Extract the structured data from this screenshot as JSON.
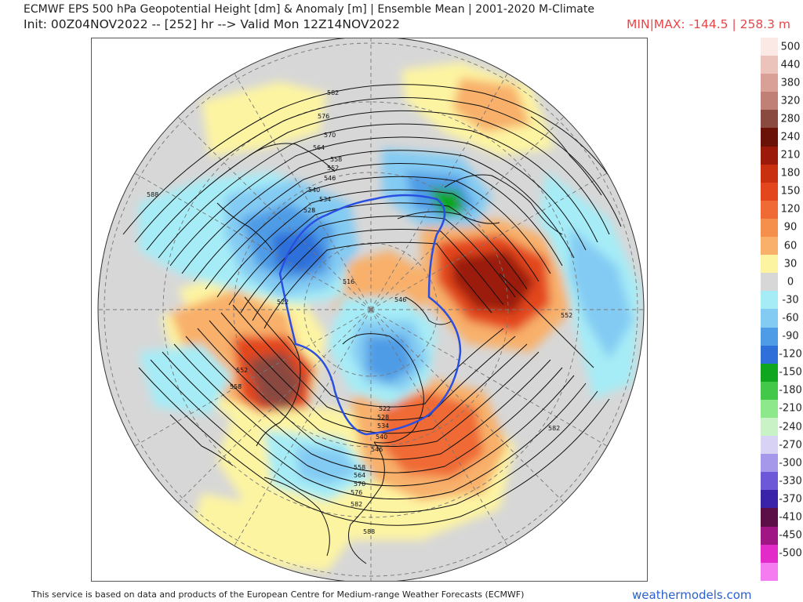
{
  "header": {
    "title": "ECMWF EPS 500 hPa Geopotential Height [dm] & Anomaly [m] | Ensemble Mean | 2001-2020 M-Climate",
    "init_line": "Init: 00Z04NOV2022 -- [252] hr --> Valid Mon 12Z14NOV2022",
    "minmax": "MIN|MAX: -144.5 | 258.3 m"
  },
  "colorbar": {
    "items": [
      {
        "label": "500",
        "color": "#fbe9e6"
      },
      {
        "label": "440",
        "color": "#ecc3bb"
      },
      {
        "label": "380",
        "color": "#d9a097"
      },
      {
        "label": "320",
        "color": "#c08075"
      },
      {
        "label": "280",
        "color": "#8a4a40"
      },
      {
        "label": "240",
        "color": "#6b1208"
      },
      {
        "label": "210",
        "color": "#9b1a0a"
      },
      {
        "label": "180",
        "color": "#c8300f"
      },
      {
        "label": "150",
        "color": "#e3461d"
      },
      {
        "label": "120",
        "color": "#ef6a35"
      },
      {
        "label": "90",
        "color": "#f5904c"
      },
      {
        "label": "60",
        "color": "#f8b06a"
      },
      {
        "label": "30",
        "color": "#fdf4a2"
      },
      {
        "label": "0",
        "color": "#d7d7d7"
      },
      {
        "label": "-30",
        "color": "#a6ecf6"
      },
      {
        "label": "-60",
        "color": "#83cbf3"
      },
      {
        "label": "-90",
        "color": "#4f9ce6"
      },
      {
        "label": "-120",
        "color": "#2e6fd9"
      },
      {
        "label": "-150",
        "color": "#11a61f"
      },
      {
        "label": "-180",
        "color": "#43c84a"
      },
      {
        "label": "-210",
        "color": "#8ce88a"
      },
      {
        "label": "-240",
        "color": "#c9f3c6"
      },
      {
        "label": "-270",
        "color": "#d8d2f5"
      },
      {
        "label": "-300",
        "color": "#a598ea"
      },
      {
        "label": "-330",
        "color": "#6d58d8"
      },
      {
        "label": "-370",
        "color": "#3a23a8"
      },
      {
        "label": "-410",
        "color": "#5c0e46"
      },
      {
        "label": "-450",
        "color": "#a01684"
      },
      {
        "label": "-500",
        "color": "#e22bc8"
      },
      {
        "label": "",
        "color": "#f57bf0"
      }
    ]
  },
  "map": {
    "contour_labels": [
      {
        "text": "582"
      },
      {
        "text": "576"
      },
      {
        "text": "570"
      },
      {
        "text": "564"
      },
      {
        "text": "558"
      },
      {
        "text": "552"
      },
      {
        "text": "546"
      },
      {
        "text": "540"
      },
      {
        "text": "534"
      },
      {
        "text": "528"
      },
      {
        "text": "516"
      },
      {
        "text": "522"
      },
      {
        "text": "588"
      },
      {
        "text": "552"
      },
      {
        "text": "558"
      },
      {
        "text": "522"
      },
      {
        "text": "528"
      },
      {
        "text": "534"
      },
      {
        "text": "540"
      },
      {
        "text": "546"
      },
      {
        "text": "558"
      },
      {
        "text": "564"
      },
      {
        "text": "570"
      },
      {
        "text": "576"
      },
      {
        "text": "582"
      },
      {
        "text": "588"
      },
      {
        "text": "582"
      },
      {
        "text": "546"
      },
      {
        "text": "552"
      }
    ]
  },
  "footer": {
    "attribution": "This service is based on data and products of the European Centre for Medium-range Weather Forecasts (ECMWF)",
    "site": "weathermodels.com"
  }
}
